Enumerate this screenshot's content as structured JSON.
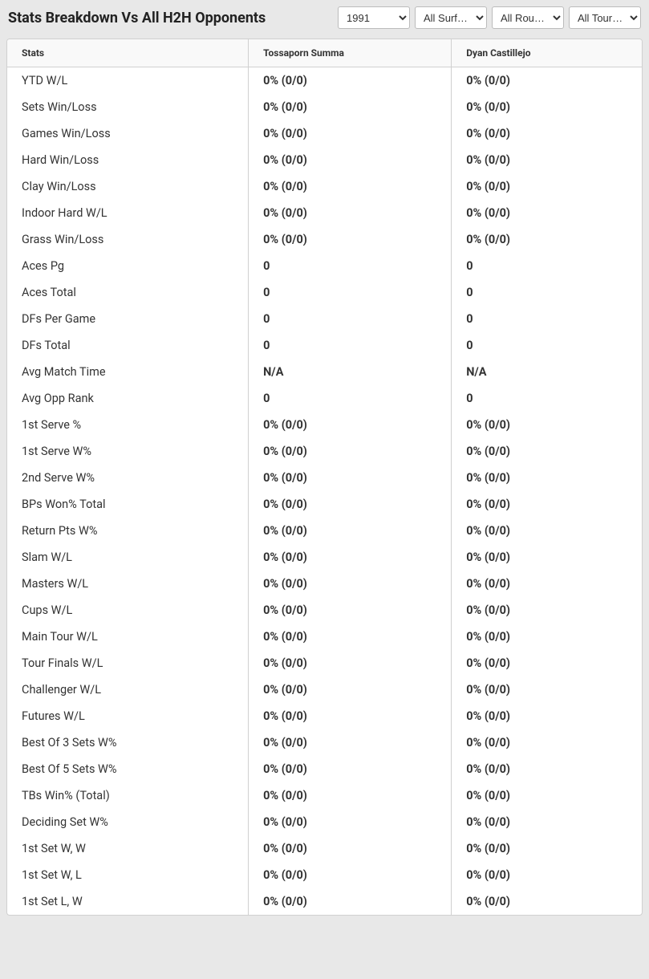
{
  "title": "Stats Breakdown Vs All H2H Opponents",
  "filters": {
    "year": "1991",
    "surface": "All Surf…",
    "round": "All Rou…",
    "tour": "All Tour…"
  },
  "columns": {
    "stats": "Stats",
    "player1": "Tossaporn Summa",
    "player2": "Dyan Castillejo"
  },
  "rows": [
    {
      "label": "YTD W/L",
      "p1": "0% (0/0)",
      "p2": "0% (0/0)"
    },
    {
      "label": "Sets Win/Loss",
      "p1": "0% (0/0)",
      "p2": "0% (0/0)"
    },
    {
      "label": "Games Win/Loss",
      "p1": "0% (0/0)",
      "p2": "0% (0/0)"
    },
    {
      "label": "Hard Win/Loss",
      "p1": "0% (0/0)",
      "p2": "0% (0/0)"
    },
    {
      "label": "Clay Win/Loss",
      "p1": "0% (0/0)",
      "p2": "0% (0/0)"
    },
    {
      "label": "Indoor Hard W/L",
      "p1": "0% (0/0)",
      "p2": "0% (0/0)"
    },
    {
      "label": "Grass Win/Loss",
      "p1": "0% (0/0)",
      "p2": "0% (0/0)"
    },
    {
      "label": "Aces Pg",
      "p1": "0",
      "p2": "0"
    },
    {
      "label": "Aces Total",
      "p1": "0",
      "p2": "0"
    },
    {
      "label": "DFs Per Game",
      "p1": "0",
      "p2": "0"
    },
    {
      "label": "DFs Total",
      "p1": "0",
      "p2": "0"
    },
    {
      "label": "Avg Match Time",
      "p1": "N/A",
      "p2": "N/A"
    },
    {
      "label": "Avg Opp Rank",
      "p1": "0",
      "p2": "0"
    },
    {
      "label": "1st Serve %",
      "p1": "0% (0/0)",
      "p2": "0% (0/0)"
    },
    {
      "label": "1st Serve W%",
      "p1": "0% (0/0)",
      "p2": "0% (0/0)"
    },
    {
      "label": "2nd Serve W%",
      "p1": "0% (0/0)",
      "p2": "0% (0/0)"
    },
    {
      "label": "BPs Won% Total",
      "p1": "0% (0/0)",
      "p2": "0% (0/0)"
    },
    {
      "label": "Return Pts W%",
      "p1": "0% (0/0)",
      "p2": "0% (0/0)"
    },
    {
      "label": "Slam W/L",
      "p1": "0% (0/0)",
      "p2": "0% (0/0)"
    },
    {
      "label": "Masters W/L",
      "p1": "0% (0/0)",
      "p2": "0% (0/0)"
    },
    {
      "label": "Cups W/L",
      "p1": "0% (0/0)",
      "p2": "0% (0/0)"
    },
    {
      "label": "Main Tour W/L",
      "p1": "0% (0/0)",
      "p2": "0% (0/0)"
    },
    {
      "label": "Tour Finals W/L",
      "p1": "0% (0/0)",
      "p2": "0% (0/0)"
    },
    {
      "label": "Challenger W/L",
      "p1": "0% (0/0)",
      "p2": "0% (0/0)"
    },
    {
      "label": "Futures W/L",
      "p1": "0% (0/0)",
      "p2": "0% (0/0)"
    },
    {
      "label": "Best Of 3 Sets W%",
      "p1": "0% (0/0)",
      "p2": "0% (0/0)"
    },
    {
      "label": "Best Of 5 Sets W%",
      "p1": "0% (0/0)",
      "p2": "0% (0/0)"
    },
    {
      "label": "TBs Win% (Total)",
      "p1": "0% (0/0)",
      "p2": "0% (0/0)"
    },
    {
      "label": "Deciding Set W%",
      "p1": "0% (0/0)",
      "p2": "0% (0/0)"
    },
    {
      "label": "1st Set W, W",
      "p1": "0% (0/0)",
      "p2": "0% (0/0)"
    },
    {
      "label": "1st Set W, L",
      "p1": "0% (0/0)",
      "p2": "0% (0/0)"
    },
    {
      "label": "1st Set L, W",
      "p1": "0% (0/0)",
      "p2": "0% (0/0)"
    }
  ]
}
